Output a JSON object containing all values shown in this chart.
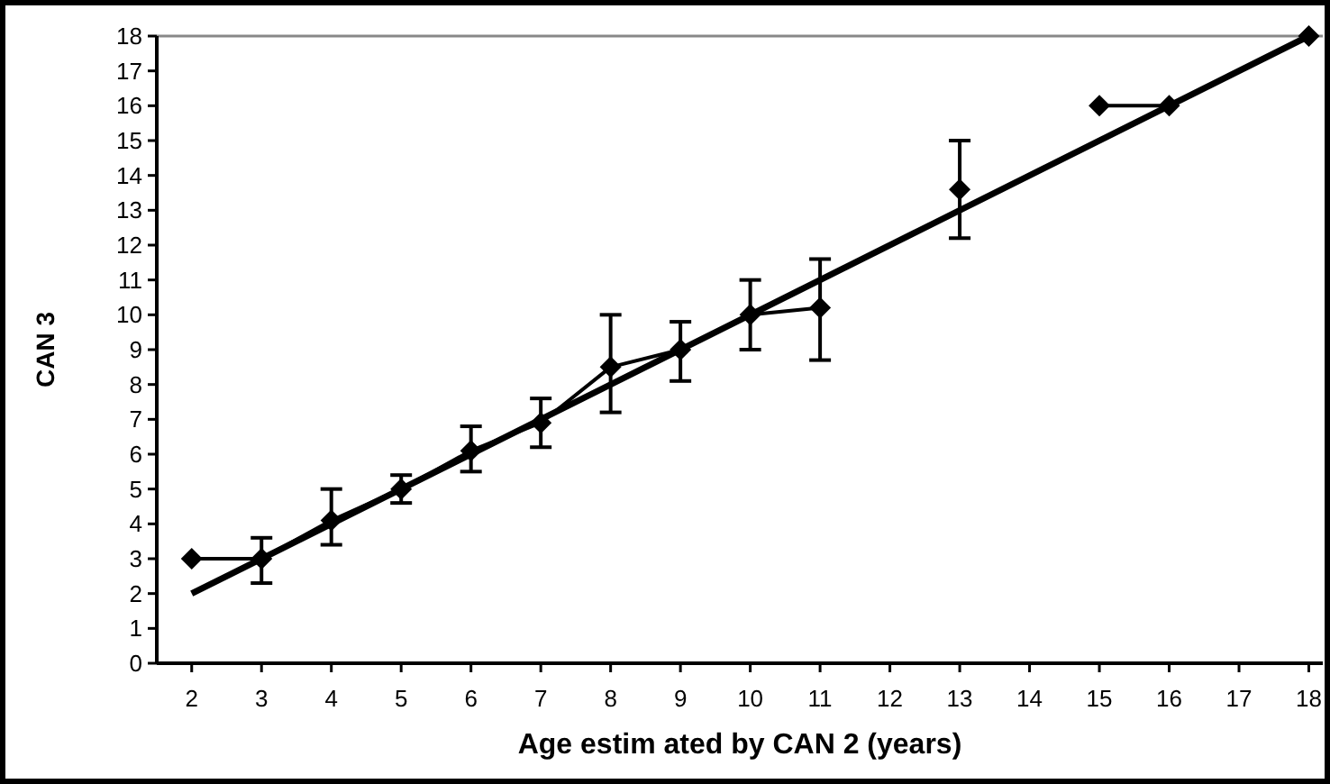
{
  "chart_data": {
    "type": "line",
    "xlabel": "Age estim ated by CAN 2 (years)",
    "ylabel": "CAN 3",
    "xlim": [
      1.5,
      18.2
    ],
    "xticks": [
      2,
      3,
      4,
      5,
      6,
      7,
      8,
      9,
      10,
      11,
      12,
      13,
      14,
      15,
      16,
      17,
      18
    ],
    "ylim": [
      0,
      18
    ],
    "yticks": [
      0,
      1,
      2,
      3,
      4,
      5,
      6,
      7,
      8,
      9,
      10,
      11,
      12,
      13,
      14,
      15,
      16,
      17,
      18
    ],
    "grid": false,
    "series": [
      {
        "color": "#000000",
        "x": [
          2,
          18
        ],
        "values": [
          2,
          18
        ]
      },
      {
        "color": "#000000",
        "marker": "diamond",
        "x": [
          2,
          3,
          4,
          5,
          6,
          7,
          8,
          9,
          10,
          11,
          12,
          13,
          14,
          15,
          16,
          18
        ],
        "values": [
          3,
          3,
          4.1,
          5,
          6.1,
          6.9,
          8.5,
          9,
          10,
          10.2,
          null,
          13.6,
          null,
          16,
          16,
          18
        ],
        "errors": [
          null,
          [
            2.3,
            3.6
          ],
          [
            3.4,
            5
          ],
          [
            4.6,
            5.4
          ],
          [
            5.5,
            6.8
          ],
          [
            6.2,
            7.6
          ],
          [
            7.2,
            10
          ],
          [
            8.1,
            9.8
          ],
          [
            9,
            11
          ],
          [
            8.7,
            11.6
          ],
          null,
          [
            12.2,
            15
          ],
          null,
          null,
          null,
          null
        ]
      }
    ]
  }
}
